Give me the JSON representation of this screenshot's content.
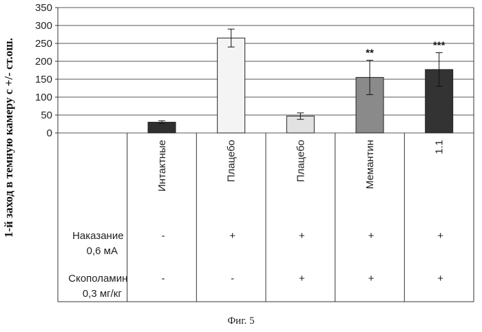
{
  "chart_data": {
    "type": "bar",
    "title": "",
    "ylabel": "1-й заход в темную камеру с +/- ст.ош.",
    "ylim": [
      0,
      350
    ],
    "yticks": [
      0,
      50,
      100,
      150,
      200,
      250,
      300,
      350
    ],
    "grid": true,
    "categories": [
      "Интактные",
      "Плацебо",
      "Плацебо",
      "Мемантин",
      "1.1"
    ],
    "values": [
      30,
      265,
      47,
      155,
      177
    ],
    "errors": [
      4,
      25,
      9,
      48,
      47
    ],
    "significance": [
      "",
      "",
      "",
      "**",
      "***"
    ],
    "bar_colors": [
      "#2f2f2f",
      "#f4f4f4",
      "#e2e2e2",
      "#8a8a8a",
      "#333333"
    ]
  },
  "rows": [
    {
      "label_line1": "Наказание",
      "label_line2": "0,6 мА",
      "values": [
        "-",
        "+",
        "+",
        "+",
        "+"
      ]
    },
    {
      "label_line1": "Скополамин",
      "label_line2": "0,3 мг/кг",
      "values": [
        "-",
        "-",
        "+",
        "+",
        "+"
      ]
    }
  ],
  "caption": "Фиг. 5"
}
